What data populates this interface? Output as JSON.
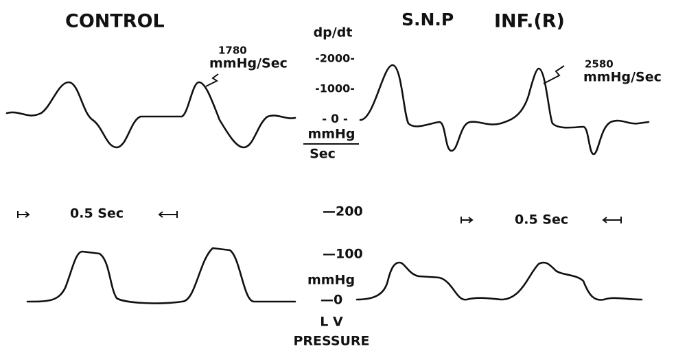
{
  "left_title": "CONTROL",
  "right_title": "S.N.P",
  "right_title_2": "INF.(R)",
  "dpdt_scale": {
    "label": "dp/dt",
    "ticks": [
      "-2000-",
      "-1000-",
      "- 0 -"
    ],
    "unit_top": "mmHg",
    "unit_bottom": "Sec"
  },
  "annotations": [
    {
      "value": "1780",
      "unit": "mmHg/Sec"
    },
    {
      "value": "2580",
      "unit": "mmHg/Sec"
    }
  ],
  "time_bars": [
    "0.5 Sec",
    "0.5 Sec"
  ],
  "pressure_scale": {
    "ticks": [
      "—200",
      "—100",
      "—0"
    ],
    "unit": "mmHg",
    "label_1": "L V",
    "label_2": "PRESSURE"
  }
}
